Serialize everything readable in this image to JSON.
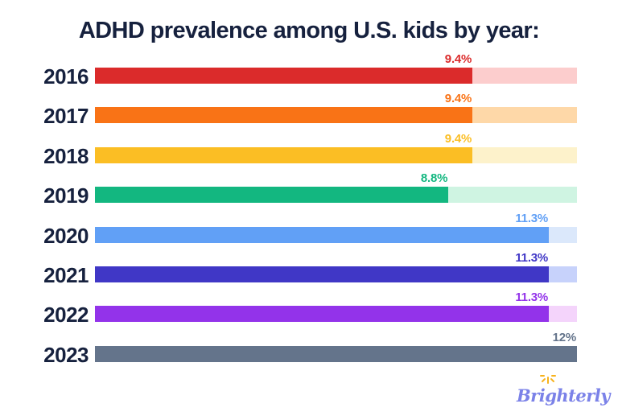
{
  "title": "ADHD prevalence among U.S. kids by year:",
  "brand": {
    "logo_text": "Brighterly",
    "logo_color": "#7B82E8",
    "sun_color": "#F7B31D"
  },
  "chart_data": {
    "type": "bar",
    "orientation": "horizontal",
    "title": "ADHD prevalence among U.S. kids by year:",
    "categories": [
      "2016",
      "2017",
      "2018",
      "2019",
      "2020",
      "2021",
      "2022",
      "2023"
    ],
    "values": [
      9.4,
      9.4,
      9.4,
      8.8,
      11.3,
      11.3,
      11.3,
      12
    ],
    "xlim": [
      0,
      12
    ],
    "grid": false,
    "legend": false,
    "bars": [
      {
        "year": "2016",
        "value": 9.4,
        "label": "9.4%",
        "fill": "#DB2B2B",
        "track": "#FCCDCD",
        "label_color": "#DB2B2B"
      },
      {
        "year": "2017",
        "value": 9.4,
        "label": "9.4%",
        "fill": "#F97316",
        "track": "#FED8A8",
        "label_color": "#F97316"
      },
      {
        "year": "2018",
        "value": 9.4,
        "label": "9.4%",
        "fill": "#FBBE24",
        "track": "#FDF2CB",
        "label_color": "#FBBE24"
      },
      {
        "year": "2019",
        "value": 8.8,
        "label": "8.8%",
        "fill": "#13B780",
        "track": "#CFF4E2",
        "label_color": "#13B780"
      },
      {
        "year": "2020",
        "value": 11.3,
        "label": "11.3%",
        "fill": "#61A0F6",
        "track": "#DBE8FB",
        "label_color": "#61A0F6"
      },
      {
        "year": "2021",
        "value": 11.3,
        "label": "11.3%",
        "fill": "#4037C6",
        "track": "#C7D2FB",
        "label_color": "#4037C6"
      },
      {
        "year": "2022",
        "value": 11.3,
        "label": "11.3%",
        "fill": "#9333EA",
        "track": "#F4D4FB",
        "label_color": "#9333EA"
      },
      {
        "year": "2023",
        "value": 12,
        "label": "12%",
        "fill": "#64748B",
        "track": "#64748B",
        "label_color": "#64748B"
      }
    ]
  }
}
